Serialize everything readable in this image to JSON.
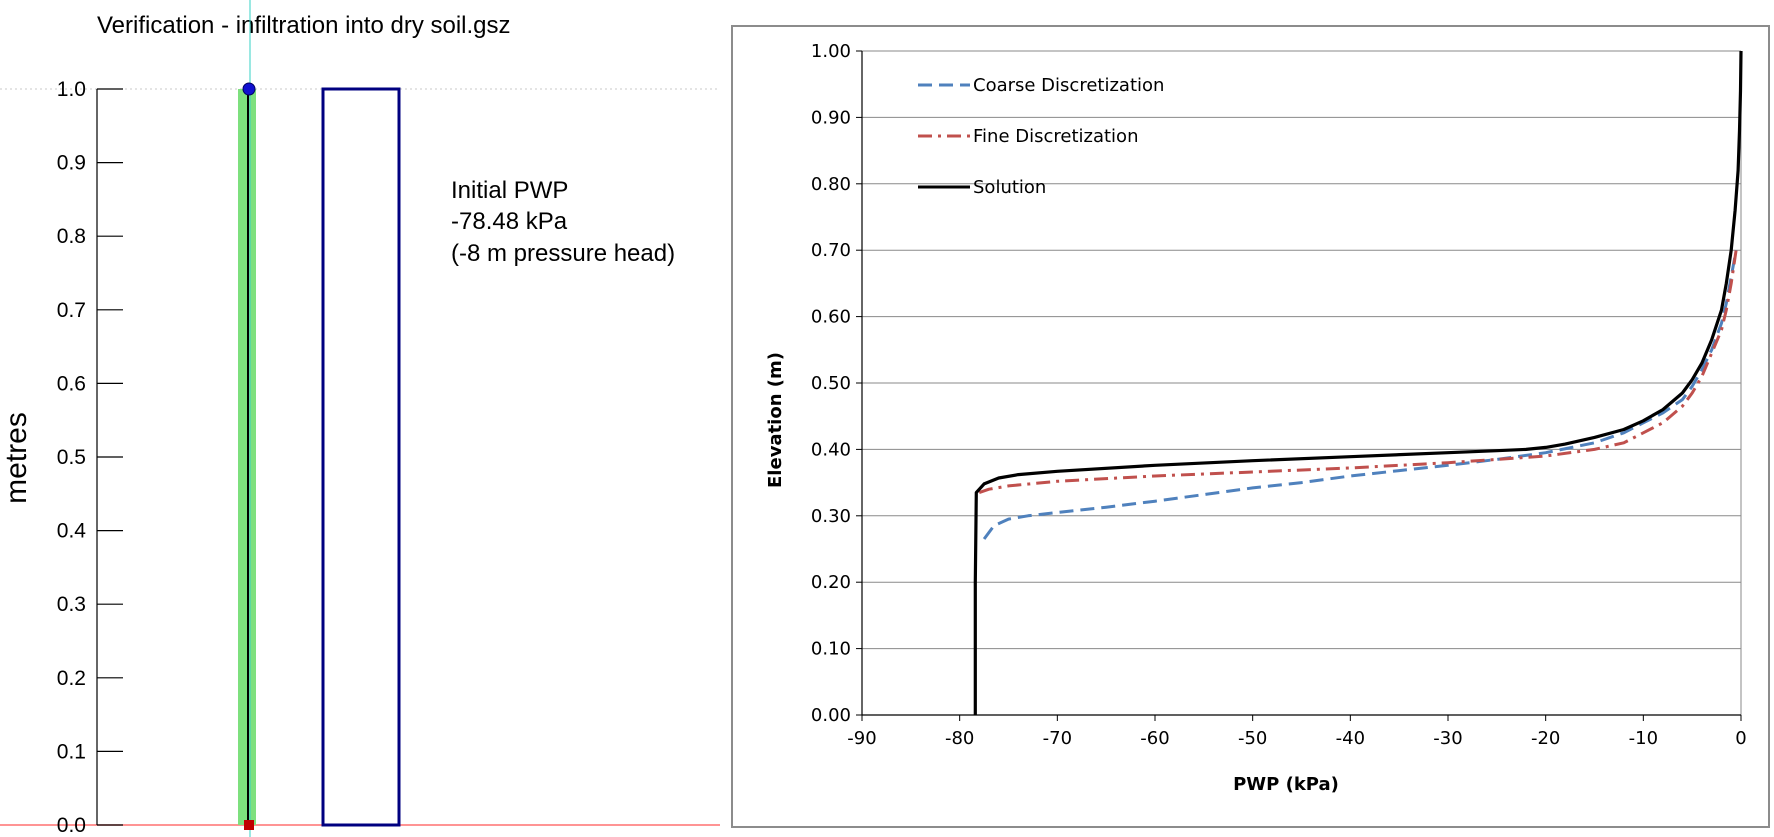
{
  "model_view": {
    "title": "Verification - infiltration into dry soil.gsz",
    "axis_label": "metres",
    "y_ticks": [
      "1.0",
      "0.9",
      "0.8",
      "0.7",
      "0.6",
      "0.5",
      "0.4",
      "0.3",
      "0.2",
      "0.1",
      "0.0"
    ],
    "annotation": {
      "line1": "Initial PWP",
      "line2": "-78.48 kPa",
      "line3": "(-8 m pressure head)"
    },
    "colors": {
      "column_fill": "#7ee07e",
      "rectangle_stroke": "#000080",
      "top_point": "#1010d0",
      "bottom_point": "#c00000",
      "guide_line": "#ff7070"
    }
  },
  "chart_data": {
    "type": "line",
    "title": "",
    "xlabel": "PWP (kPa)",
    "ylabel": "Elevation (m)",
    "xlim": [
      -90,
      0
    ],
    "ylim": [
      0,
      1
    ],
    "x_ticks": [
      "-90",
      "-80",
      "-70",
      "-60",
      "-50",
      "-40",
      "-30",
      "-20",
      "-10",
      "0"
    ],
    "y_ticks": [
      "0.00",
      "0.10",
      "0.20",
      "0.30",
      "0.40",
      "0.50",
      "0.60",
      "0.70",
      "0.80",
      "0.90",
      "1.00"
    ],
    "grid": "horizontal",
    "legend_position": "top-left",
    "series": [
      {
        "name": "Coarse Discretization",
        "color": "#4f81bd",
        "style": "dashed",
        "x": [
          -77.5,
          -76.5,
          -75,
          -73,
          -70,
          -65,
          -60,
          -55,
          -50,
          -45,
          -40,
          -35,
          -30,
          -25,
          -20,
          -15,
          -12,
          -10,
          -8,
          -6,
          -5,
          -4,
          -3,
          -2,
          -1.5,
          -1,
          -0.5
        ],
        "y": [
          0.265,
          0.285,
          0.295,
          0.3,
          0.305,
          0.313,
          0.322,
          0.332,
          0.342,
          0.35,
          0.36,
          0.368,
          0.376,
          0.385,
          0.395,
          0.41,
          0.425,
          0.44,
          0.455,
          0.475,
          0.495,
          0.52,
          0.55,
          0.59,
          0.62,
          0.66,
          0.7
        ]
      },
      {
        "name": "Fine Discretization",
        "color": "#c0504d",
        "style": "dash-dot",
        "x": [
          -78,
          -77,
          -75,
          -70,
          -60,
          -50,
          -40,
          -30,
          -25,
          -20,
          -15,
          -12,
          -10,
          -8,
          -6,
          -5,
          -4,
          -3,
          -2,
          -1.5,
          -1,
          -0.5
        ],
        "y": [
          0.335,
          0.34,
          0.345,
          0.352,
          0.36,
          0.366,
          0.372,
          0.38,
          0.385,
          0.39,
          0.4,
          0.41,
          0.425,
          0.44,
          0.465,
          0.485,
          0.51,
          0.545,
          0.58,
          0.61,
          0.65,
          0.7
        ]
      },
      {
        "name": "Solution",
        "color": "#000000",
        "style": "solid",
        "x": [
          -78.4,
          -78.4,
          -78.3,
          -77.5,
          -76,
          -74,
          -70,
          -60,
          -50,
          -40,
          -30,
          -25,
          -22,
          -20,
          -18,
          -15,
          -12,
          -10,
          -8,
          -6,
          -5,
          -4,
          -3,
          -2,
          -1.5,
          -1,
          -0.6,
          -0.3,
          -0.15,
          -0.05,
          0
        ],
        "y": [
          0,
          0.2,
          0.335,
          0.348,
          0.357,
          0.362,
          0.367,
          0.376,
          0.383,
          0.389,
          0.395,
          0.398,
          0.4,
          0.403,
          0.408,
          0.418,
          0.43,
          0.443,
          0.46,
          0.485,
          0.505,
          0.53,
          0.565,
          0.61,
          0.65,
          0.7,
          0.76,
          0.82,
          0.88,
          0.94,
          1.0
        ]
      }
    ]
  }
}
